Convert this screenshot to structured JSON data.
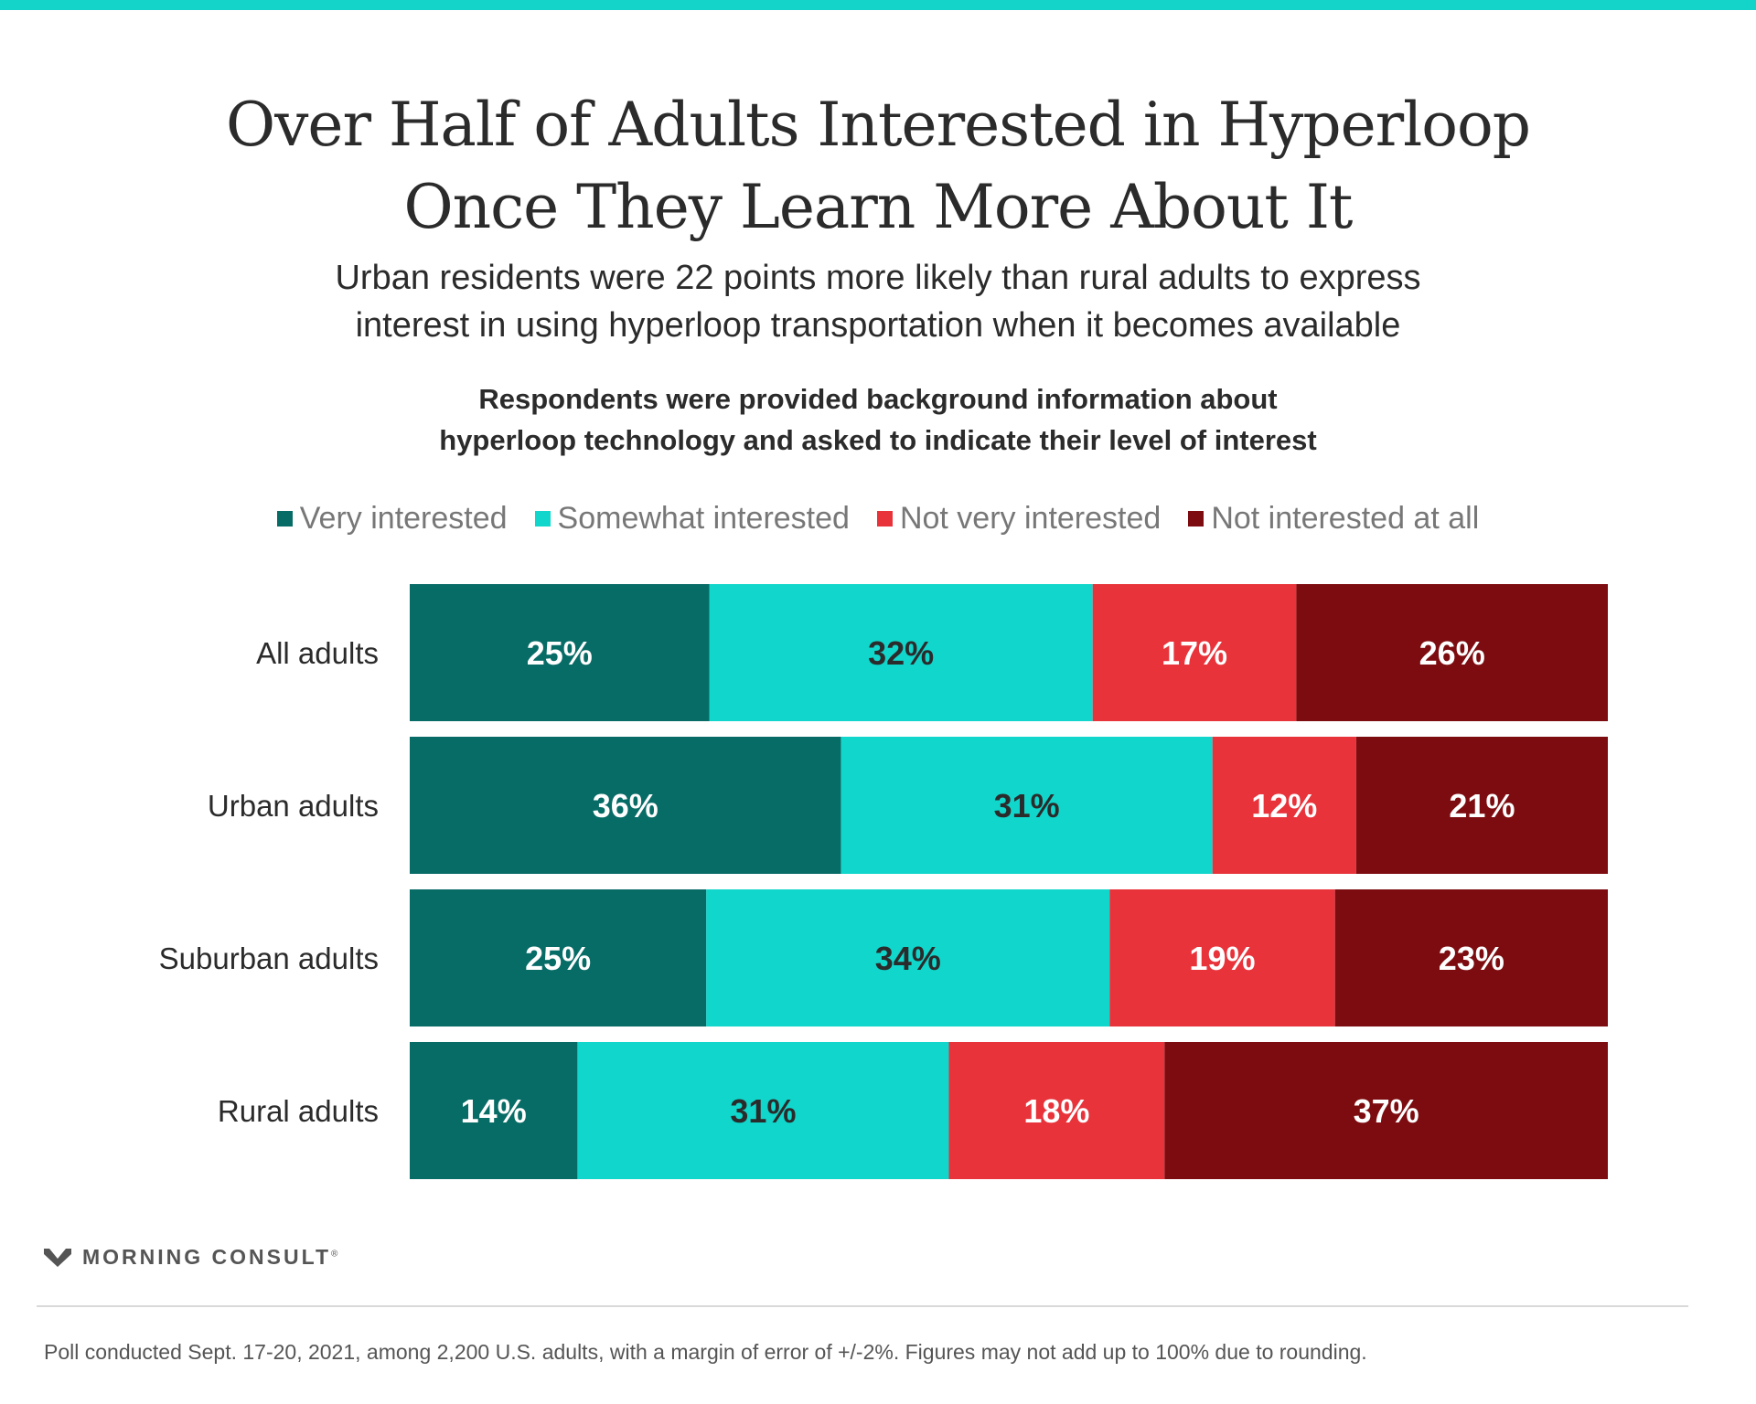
{
  "header": {
    "title_lines": [
      "Over Half of Adults Interested in Hyperloop",
      "Once They Learn More About It"
    ],
    "subtitle_lines": [
      "Urban residents were 22 points more likely than rural adults to express",
      "interest in using hyperloop transportation when it becomes available"
    ],
    "question_lines": [
      "Respondents were provided background information about",
      "hyperloop technology and asked to indicate their level of interest"
    ]
  },
  "chart_data": {
    "type": "bar",
    "orientation": "horizontal",
    "stacked": true,
    "categories": [
      "All adults",
      "Urban adults",
      "Suburban adults",
      "Rural adults"
    ],
    "series": [
      {
        "name": "Very interested",
        "color": "#076b66",
        "label_color": "#ffffff",
        "values": [
          25,
          36,
          25,
          14
        ]
      },
      {
        "name": "Somewhat interested",
        "color": "#11d6cb",
        "label_color": "#2b2b2b",
        "values": [
          32,
          31,
          34,
          31
        ]
      },
      {
        "name": "Not very interested",
        "color": "#e8333b",
        "label_color": "#ffffff",
        "values": [
          17,
          12,
          19,
          18
        ]
      },
      {
        "name": "Not interested at all",
        "color": "#7d0c10",
        "label_color": "#ffffff",
        "values": [
          26,
          21,
          23,
          37
        ]
      }
    ],
    "value_suffix": "%",
    "legend": "top",
    "grid": false
  },
  "footer": {
    "brand": "MORNING CONSULT",
    "brand_mark": "®",
    "logo_icon": "morning-consult-m-logo",
    "note": "Poll conducted Sept. 17-20, 2021, among 2,200 U.S. adults, with a margin of error of +/-2%. Figures may not add up to 100% due to rounding."
  }
}
